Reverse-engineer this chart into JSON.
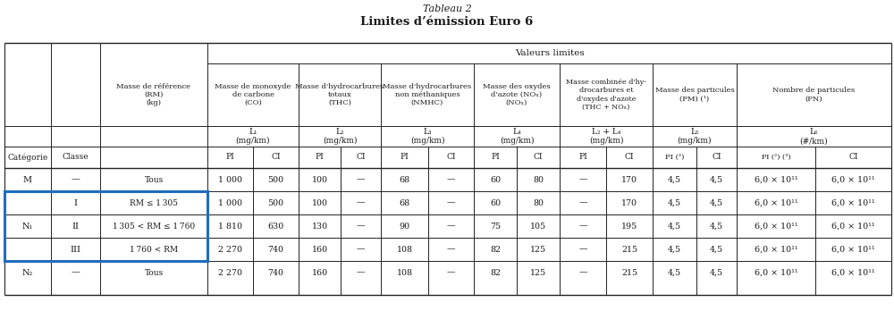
{
  "title": "Tableau 2",
  "subtitle": "Limites d’émission Euro 6",
  "highlight_color": "#1f6dbf",
  "text_color": "#1a1a1a",
  "line_color": "#222222",
  "bg_color": "#ffffff",
  "rows": [
    {
      "cat": "M",
      "classe": "—",
      "rm": "Tous",
      "data": [
        "1 000",
        "500",
        "100",
        "—",
        "68",
        "—",
        "60",
        "80",
        "—",
        "170",
        "4,5",
        "4,5",
        "6,0 × 10¹¹",
        "6,0 × 10¹¹"
      ],
      "highlight": false
    },
    {
      "cat": "N₁",
      "classe": "I",
      "rm": "RM ≤ 1 305",
      "data": [
        "1 000",
        "500",
        "100",
        "—",
        "68",
        "—",
        "60",
        "80",
        "—",
        "170",
        "4,5",
        "4,5",
        "6,0 × 10¹¹",
        "6,0 × 10¹¹"
      ],
      "highlight": true
    },
    {
      "cat": "",
      "classe": "II",
      "rm": "1 305 < RM ≤ 1 760",
      "data": [
        "1 810",
        "630",
        "130",
        "—",
        "90",
        "—",
        "75",
        "105",
        "—",
        "195",
        "4,5",
        "4,5",
        "6,0 × 10¹¹",
        "6,0 × 10¹¹"
      ],
      "highlight": true
    },
    {
      "cat": "",
      "classe": "III",
      "rm": "1 760 < RM",
      "data": [
        "2 270",
        "740",
        "160",
        "—",
        "108",
        "—",
        "82",
        "125",
        "—",
        "215",
        "4,5",
        "4,5",
        "6,0 × 10¹¹",
        "6,0 × 10¹¹"
      ],
      "highlight": true
    },
    {
      "cat": "N₂",
      "classe": "—",
      "rm": "Tous",
      "data": [
        "2 270",
        "740",
        "160",
        "—",
        "108",
        "—",
        "82",
        "125",
        "—",
        "215",
        "4,5",
        "4,5",
        "6,0 × 10¹¹",
        "6,0 × 10¹¹"
      ],
      "highlight": false
    }
  ]
}
